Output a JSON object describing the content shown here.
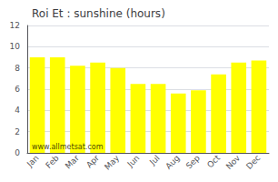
{
  "chart_data": {
    "type": "bar",
    "title": "Roi Et : sunshine (hours)",
    "categories": [
      "Jan",
      "Feb",
      "Mar",
      "Apr",
      "May",
      "Jun",
      "Jul",
      "Aug",
      "Sep",
      "Oct",
      "Nov",
      "Dec"
    ],
    "values": [
      9.0,
      9.0,
      8.2,
      8.5,
      8.0,
      6.5,
      6.5,
      5.6,
      5.9,
      7.4,
      8.5,
      8.7
    ],
    "color": "#ffff00",
    "ylim": [
      0,
      12
    ],
    "yticks": [
      0,
      2,
      4,
      6,
      8,
      10,
      12
    ],
    "grid": true,
    "annotation": "www.allmetsat.com"
  }
}
